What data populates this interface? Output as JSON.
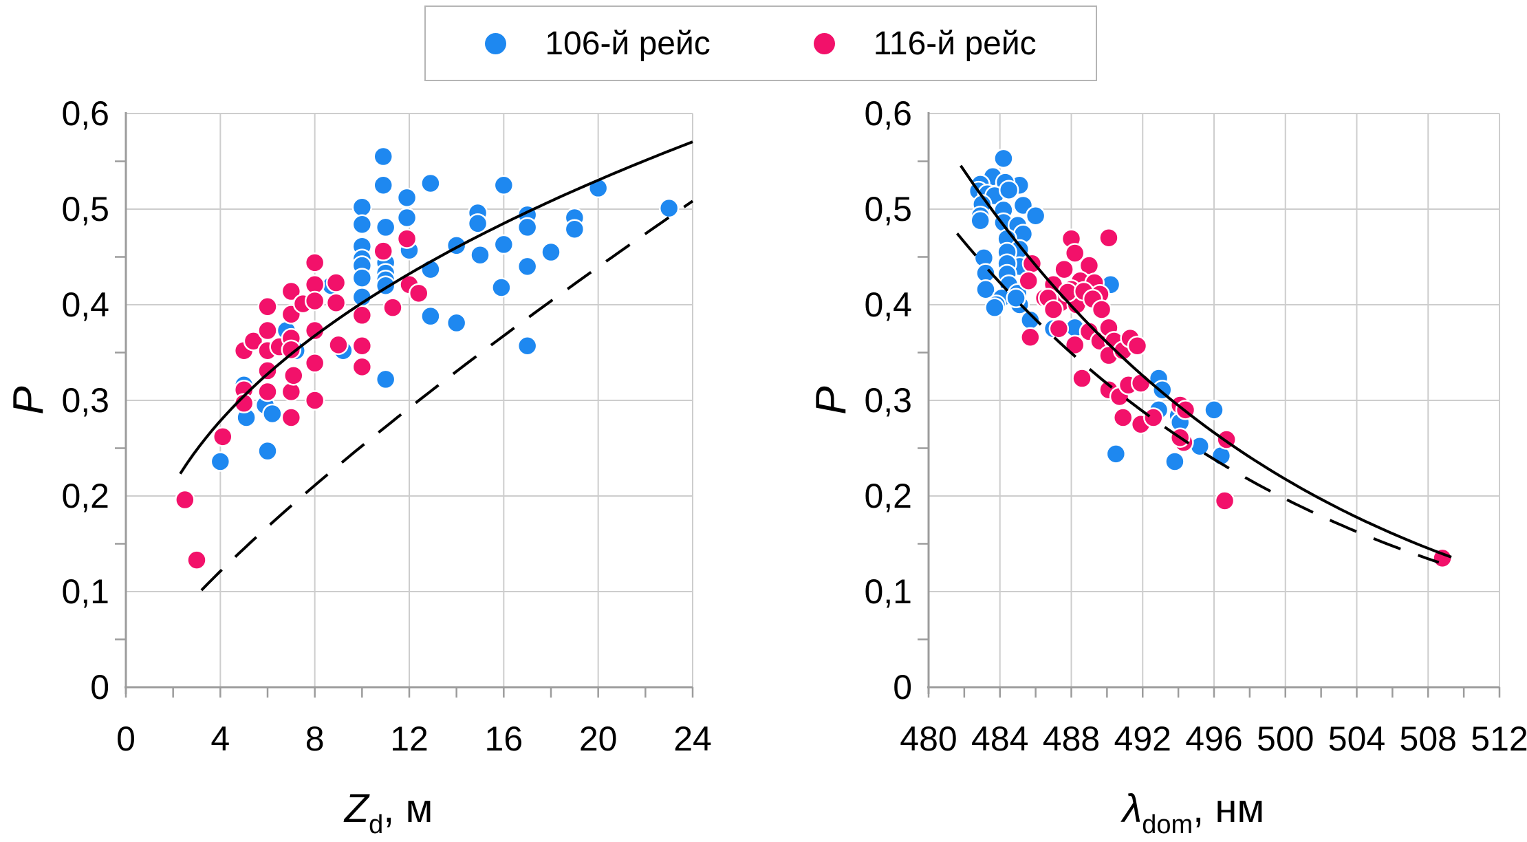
{
  "legend": {
    "items": [
      {
        "label": "106-й рейс",
        "color": "#1e88f0"
      },
      {
        "label": "116-й рейс",
        "color": "#f2116a"
      }
    ]
  },
  "colors": {
    "series_blue": "#1e88f0",
    "series_pink": "#f2116a",
    "gridline": "#cdcdcd",
    "axis": "#9c9c9c",
    "trend": "#000000"
  },
  "chart_data": [
    {
      "type": "scatter",
      "xlabel": {
        "base": "Z",
        "sub": "d",
        "rest": ", м"
      },
      "ylabel": "P",
      "xlim": [
        0,
        24
      ],
      "ylim": [
        0,
        0.6
      ],
      "xticks": [
        0,
        4,
        8,
        12,
        16,
        20,
        24
      ],
      "xtick_labels": [
        "0",
        "4",
        "8",
        "12",
        "16",
        "20",
        "24"
      ],
      "x_minor_step": 2,
      "yticks": [
        0,
        0.1,
        0.2,
        0.3,
        0.4,
        0.5,
        0.6
      ],
      "ytick_labels": [
        "0",
        "0,1",
        "0,2",
        "0,3",
        "0,4",
        "0,5",
        "0,6"
      ],
      "y_minor_step": 0.05,
      "grid": true,
      "legend_position": "top",
      "series": [
        {
          "name": "106-й рейс",
          "color": "#1e88f0",
          "points": [
            [
              4.0,
              0.236
            ],
            [
              5.0,
              0.316
            ],
            [
              5.1,
              0.282
            ],
            [
              5.9,
              0.295
            ],
            [
              6.2,
              0.286
            ],
            [
              6.0,
              0.247
            ],
            [
              6.8,
              0.373
            ],
            [
              7.2,
              0.352
            ],
            [
              8.7,
              0.42
            ],
            [
              9.2,
              0.352
            ],
            [
              10.0,
              0.502
            ],
            [
              10.0,
              0.484
            ],
            [
              10.0,
              0.461
            ],
            [
              10.0,
              0.448
            ],
            [
              10.0,
              0.441
            ],
            [
              10.0,
              0.428
            ],
            [
              10.0,
              0.408
            ],
            [
              10.9,
              0.555
            ],
            [
              10.9,
              0.525
            ],
            [
              11.0,
              0.481
            ],
            [
              11.0,
              0.444
            ],
            [
              11.0,
              0.433
            ],
            [
              11.0,
              0.426
            ],
            [
              11.0,
              0.42
            ],
            [
              11.0,
              0.322
            ],
            [
              11.9,
              0.512
            ],
            [
              11.9,
              0.491
            ],
            [
              12.0,
              0.457
            ],
            [
              12.9,
              0.527
            ],
            [
              12.9,
              0.437
            ],
            [
              12.9,
              0.388
            ],
            [
              14.0,
              0.462
            ],
            [
              14.0,
              0.381
            ],
            [
              14.9,
              0.496
            ],
            [
              14.9,
              0.485
            ],
            [
              15.0,
              0.452
            ],
            [
              15.9,
              0.418
            ],
            [
              16.0,
              0.525
            ],
            [
              16.0,
              0.463
            ],
            [
              17.0,
              0.494
            ],
            [
              17.0,
              0.481
            ],
            [
              17.0,
              0.44
            ],
            [
              17.0,
              0.357
            ],
            [
              18.0,
              0.455
            ],
            [
              19.0,
              0.491
            ],
            [
              19.0,
              0.479
            ],
            [
              20.0,
              0.522
            ],
            [
              23.0,
              0.501
            ]
          ]
        },
        {
          "name": "116-й рейс",
          "color": "#f2116a",
          "points": [
            [
              2.5,
              0.196
            ],
            [
              3.0,
              0.133
            ],
            [
              4.1,
              0.262
            ],
            [
              5.0,
              0.352
            ],
            [
              5.0,
              0.311
            ],
            [
              5.0,
              0.297
            ],
            [
              5.4,
              0.362
            ],
            [
              6.0,
              0.398
            ],
            [
              6.0,
              0.373
            ],
            [
              6.0,
              0.352
            ],
            [
              6.0,
              0.331
            ],
            [
              6.0,
              0.309
            ],
            [
              6.5,
              0.356
            ],
            [
              7.0,
              0.414
            ],
            [
              7.0,
              0.39
            ],
            [
              7.0,
              0.365
            ],
            [
              7.0,
              0.353
            ],
            [
              7.0,
              0.309
            ],
            [
              7.0,
              0.282
            ],
            [
              7.1,
              0.326
            ],
            [
              7.5,
              0.401
            ],
            [
              8.0,
              0.444
            ],
            [
              8.0,
              0.421
            ],
            [
              8.0,
              0.404
            ],
            [
              8.0,
              0.373
            ],
            [
              8.0,
              0.339
            ],
            [
              8.0,
              0.3
            ],
            [
              8.9,
              0.423
            ],
            [
              8.9,
              0.402
            ],
            [
              9.0,
              0.358
            ],
            [
              10.0,
              0.389
            ],
            [
              10.0,
              0.357
            ],
            [
              10.0,
              0.335
            ],
            [
              10.9,
              0.456
            ],
            [
              11.3,
              0.397
            ],
            [
              11.9,
              0.469
            ],
            [
              12.0,
              0.421
            ],
            [
              12.4,
              0.412
            ]
          ]
        }
      ],
      "trendlines": [
        {
          "name": "solid-trend",
          "style": "solid",
          "model": "power",
          "a": 0.16,
          "b": 0.4,
          "domain": [
            2.3,
            24
          ]
        },
        {
          "name": "dashed-trend",
          "style": "dashed",
          "model": "power",
          "a": 0.04,
          "b": 0.8,
          "domain": [
            3.2,
            24
          ]
        }
      ]
    },
    {
      "type": "scatter",
      "xlabel": {
        "base": "λ",
        "sub": "dom",
        "rest": ", нм"
      },
      "ylabel": "P",
      "xlim": [
        480,
        512
      ],
      "ylim": [
        0,
        0.6
      ],
      "xticks": [
        480,
        484,
        488,
        492,
        496,
        500,
        504,
        508,
        512
      ],
      "xtick_labels": [
        "480",
        "484",
        "488",
        "492",
        "496",
        "500",
        "504",
        "508",
        "512"
      ],
      "x_minor_step": 2,
      "yticks": [
        0,
        0.1,
        0.2,
        0.3,
        0.4,
        0.5,
        0.6
      ],
      "ytick_labels": [
        "0",
        "0,1",
        "0,2",
        "0,3",
        "0,4",
        "0,5",
        "0,6"
      ],
      "y_minor_step": 0.05,
      "grid": true,
      "legend_position": "top",
      "series": [
        {
          "name": "106-й рейс",
          "color": "#1e88f0",
          "points": [
            [
              484.2,
              0.553
            ],
            [
              483.6,
              0.534
            ],
            [
              482.9,
              0.526
            ],
            [
              485.1,
              0.525
            ],
            [
              482.8,
              0.519
            ],
            [
              484.3,
              0.528
            ],
            [
              483.3,
              0.516
            ],
            [
              483.7,
              0.514
            ],
            [
              484.5,
              0.52
            ],
            [
              483.0,
              0.505
            ],
            [
              485.3,
              0.504
            ],
            [
              484.2,
              0.499
            ],
            [
              486.0,
              0.493
            ],
            [
              482.9,
              0.493
            ],
            [
              482.9,
              0.488
            ],
            [
              484.2,
              0.486
            ],
            [
              485.0,
              0.483
            ],
            [
              485.3,
              0.474
            ],
            [
              484.4,
              0.469
            ],
            [
              485.1,
              0.458
            ],
            [
              484.4,
              0.455
            ],
            [
              483.1,
              0.449
            ],
            [
              485.1,
              0.44
            ],
            [
              484.4,
              0.443
            ],
            [
              483.2,
              0.433
            ],
            [
              484.4,
              0.432
            ],
            [
              484.5,
              0.421
            ],
            [
              483.2,
              0.416
            ],
            [
              484.1,
              0.407
            ],
            [
              485.0,
              0.412
            ],
            [
              483.8,
              0.4
            ],
            [
              485.1,
              0.4
            ],
            [
              483.7,
              0.397
            ],
            [
              484.9,
              0.407
            ],
            [
              485.7,
              0.384
            ],
            [
              487.0,
              0.375
            ],
            [
              488.2,
              0.376
            ],
            [
              490.2,
              0.421
            ],
            [
              492.9,
              0.323
            ],
            [
              493.1,
              0.311
            ],
            [
              492.9,
              0.29
            ],
            [
              494.0,
              0.284
            ],
            [
              490.5,
              0.244
            ],
            [
              493.8,
              0.236
            ],
            [
              496.0,
              0.29
            ],
            [
              494.1,
              0.277
            ],
            [
              495.2,
              0.252
            ],
            [
              496.4,
              0.242
            ]
          ]
        },
        {
          "name": "116-й рейс",
          "color": "#f2116a",
          "points": [
            [
              488.0,
              0.469
            ],
            [
              490.1,
              0.47
            ],
            [
              488.2,
              0.454
            ],
            [
              485.8,
              0.443
            ],
            [
              489.0,
              0.441
            ],
            [
              487.6,
              0.437
            ],
            [
              485.6,
              0.425
            ],
            [
              488.5,
              0.425
            ],
            [
              489.3,
              0.423
            ],
            [
              487.0,
              0.421
            ],
            [
              488.0,
              0.416
            ],
            [
              488.8,
              0.412
            ],
            [
              489.6,
              0.411
            ],
            [
              486.5,
              0.407
            ],
            [
              487.4,
              0.402
            ],
            [
              488.3,
              0.4
            ],
            [
              486.7,
              0.407
            ],
            [
              487.0,
              0.395
            ],
            [
              487.8,
              0.413
            ],
            [
              488.7,
              0.414
            ],
            [
              489.2,
              0.406
            ],
            [
              489.7,
              0.395
            ],
            [
              485.7,
              0.366
            ],
            [
              487.3,
              0.375
            ],
            [
              488.2,
              0.358
            ],
            [
              489.0,
              0.372
            ],
            [
              489.6,
              0.362
            ],
            [
              490.1,
              0.376
            ],
            [
              490.4,
              0.362
            ],
            [
              490.1,
              0.347
            ],
            [
              490.9,
              0.352
            ],
            [
              491.3,
              0.365
            ],
            [
              491.7,
              0.357
            ],
            [
              488.6,
              0.323
            ],
            [
              490.1,
              0.311
            ],
            [
              490.7,
              0.304
            ],
            [
              491.2,
              0.316
            ],
            [
              491.9,
              0.318
            ],
            [
              490.9,
              0.282
            ],
            [
              491.9,
              0.275
            ],
            [
              492.6,
              0.282
            ],
            [
              494.1,
              0.295
            ],
            [
              494.4,
              0.29
            ],
            [
              494.3,
              0.256
            ],
            [
              494.1,
              0.261
            ],
            [
              496.7,
              0.259
            ],
            [
              496.6,
              0.195
            ],
            [
              508.8,
              0.135
            ]
          ]
        }
      ],
      "trendlines": [
        {
          "name": "solid-trend",
          "style": "solid",
          "model": "exp",
          "a": 0.54,
          "b": -0.0505,
          "x0": 482,
          "domain": [
            481.8,
            509.3
          ]
        },
        {
          "name": "dashed-trend",
          "style": "dashed",
          "model": "exp",
          "a": 0.47,
          "b": -0.0478,
          "x0": 481.8,
          "domain": [
            481.6,
            508.6
          ]
        }
      ]
    }
  ]
}
